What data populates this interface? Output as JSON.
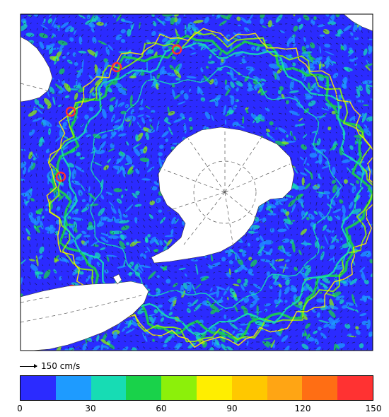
{
  "reference_vector": {
    "label": "150 cm/s"
  },
  "colorbar": {
    "colors": [
      "#2b2bff",
      "#1e9bff",
      "#17dcb4",
      "#19d24a",
      "#8cf00a",
      "#ffee00",
      "#ffc800",
      "#ffa514",
      "#ff6e14",
      "#ff3232"
    ],
    "ticks": [
      "0",
      "30",
      "60",
      "90",
      "120",
      "150"
    ],
    "min": 0,
    "max": 150
  },
  "map": {
    "ocean_colors": [
      "#2b2bff",
      "#1e9bff",
      "#17dcb4",
      "#19d24a",
      "#8cf00a",
      "#ffee00",
      "#ff3232"
    ],
    "land_color": "#ffffff",
    "grid_style": "dashed"
  }
}
